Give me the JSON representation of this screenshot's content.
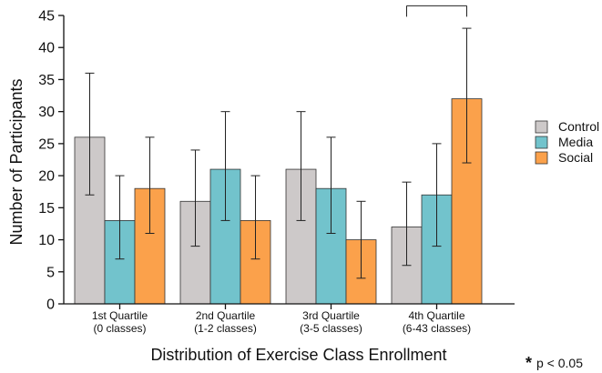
{
  "chart_data": {
    "type": "bar",
    "xlabel": "Distribution of Exercise Class Enrollment",
    "ylabel": "Number of Participants",
    "ylim": [
      0,
      45
    ],
    "yticks": [
      0,
      5,
      10,
      15,
      20,
      25,
      30,
      35,
      40,
      45
    ],
    "grid": false,
    "legend_position": "right",
    "categories": [
      {
        "line1": "1st Quartile",
        "line2": "(0 classes)"
      },
      {
        "line1": "2nd Quartile",
        "line2": "(1-2 classes)"
      },
      {
        "line1": "3rd Quartile",
        "line2": "(3-5 classes)"
      },
      {
        "line1": "4th Quartile",
        "line2": "(6-43 classes)"
      }
    ],
    "series": [
      {
        "name": "Control",
        "color": "#cdc9c9",
        "values": [
          26,
          16,
          21,
          12
        ],
        "err_low": [
          17,
          9,
          13,
          6
        ],
        "err_high": [
          36,
          24,
          30,
          19
        ]
      },
      {
        "name": "Media",
        "color": "#72c3cc",
        "values": [
          13,
          21,
          18,
          17
        ],
        "err_low": [
          7,
          13,
          11,
          9
        ],
        "err_high": [
          20,
          30,
          26,
          25
        ]
      },
      {
        "name": "Social",
        "color": "#fba14b",
        "values": [
          18,
          13,
          10,
          32
        ],
        "err_low": [
          11,
          7,
          4,
          22
        ],
        "err_high": [
          26,
          20,
          16,
          43
        ]
      }
    ],
    "significance": {
      "category_index": 3,
      "from_series": 0,
      "to_series": 2,
      "level": 46.5,
      "marker": "*"
    },
    "footnote": {
      "marker": "*",
      "text": "p < 0.05"
    }
  }
}
